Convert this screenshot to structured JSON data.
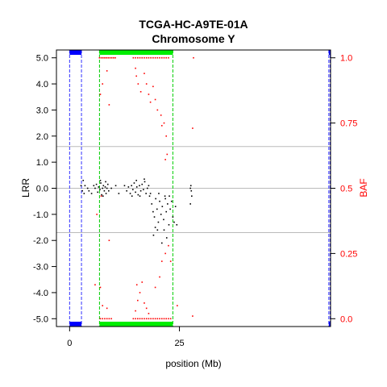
{
  "chart_data": {
    "type": "scatter",
    "title": "TCGA-HC-A9TE-01A",
    "subtitle": "Chromosome Y",
    "xlabel": "position (Mb)",
    "ylabel": "LRR",
    "y2label": "BAF",
    "xlim": [
      -3,
      59.4
    ],
    "ylim": [
      -5.3,
      5.3
    ],
    "y2lim": [
      -0.03,
      1.03
    ],
    "x_ticks": [
      0,
      25
    ],
    "x_tick_labels": [
      "0",
      "25"
    ],
    "y_ticks": [
      5,
      4,
      3,
      2,
      1,
      0,
      -1,
      -2,
      -3,
      -4,
      -5
    ],
    "y_tick_labels": [
      "5.0",
      "4.0",
      "3.0",
      "2.0",
      "1.0",
      "0.0",
      "-1.0",
      "-2.0",
      "-3.0",
      "-4.0",
      "-5.0"
    ],
    "y2_ticks": [
      1,
      0.75,
      0.5,
      0.25,
      0
    ],
    "y2_tick_labels": [
      "1.0",
      "0.75",
      "0.5",
      "0.25",
      "0.0"
    ],
    "hlines": [
      {
        "y": 1.6,
        "color": "#bbbbbb"
      },
      {
        "y": 0,
        "color": "#bbbbbb"
      },
      {
        "y": -1.7,
        "color": "#bbbbbb"
      }
    ],
    "vlines": [
      {
        "x": 0.0,
        "color": "#3333ff"
      },
      {
        "x": 2.7,
        "color": "#3333ff"
      },
      {
        "x": 6.8,
        "color": "#00cc00"
      },
      {
        "x": 23.5,
        "color": "#00cc00"
      },
      {
        "x": 59.0,
        "color": "#3333ff"
      },
      {
        "x": 59.3,
        "color": "#3333ff"
      }
    ],
    "segments": [
      {
        "x0": 0.0,
        "x1": 2.7,
        "color": "#0000ff"
      },
      {
        "x0": 6.8,
        "x1": 23.5,
        "color": "#00ee00"
      },
      {
        "x0": 59.0,
        "x1": 59.3,
        "color": "#0000ff"
      }
    ],
    "colors": {
      "lrr": "#000000",
      "baf": "#ff0000",
      "grid": "#bbbbbb",
      "axis": "#000000"
    },
    "series": [
      {
        "name": "LRR",
        "axis": "left",
        "points": [
          [
            2.6,
            0.1
          ],
          [
            2.9,
            -0.1
          ],
          [
            3.1,
            0.3
          ],
          [
            3.3,
            -0.2
          ],
          [
            3.5,
            0.1
          ],
          [
            4.1,
            0.0
          ],
          [
            4.4,
            -0.1
          ],
          [
            5.0,
            -0.2
          ],
          [
            5.5,
            0.1
          ],
          [
            5.8,
            0.0
          ],
          [
            6.1,
            0.15
          ],
          [
            6.4,
            -0.15
          ],
          [
            6.6,
            0.05
          ],
          [
            6.9,
            -0.05
          ],
          [
            7.1,
            0.2
          ],
          [
            7.3,
            -0.25
          ],
          [
            7.5,
            0.0
          ],
          [
            7.7,
            0.1
          ],
          [
            7.9,
            -0.1
          ],
          [
            8.1,
            0.05
          ],
          [
            8.3,
            -0.2
          ],
          [
            8.5,
            0.0
          ],
          [
            8.7,
            0.15
          ],
          [
            8.9,
            -0.1
          ],
          [
            7.0,
            0.3
          ],
          [
            7.6,
            -0.3
          ],
          [
            8.2,
            0.25
          ],
          [
            12.5,
            0.1
          ],
          [
            13.0,
            -0.1
          ],
          [
            13.4,
            0.05
          ],
          [
            13.8,
            -0.2
          ],
          [
            14.1,
            0.1
          ],
          [
            14.4,
            -0.05
          ],
          [
            14.7,
            0.2
          ],
          [
            15.0,
            -0.15
          ],
          [
            15.3,
            0.05
          ],
          [
            15.6,
            -0.25
          ],
          [
            15.9,
            0.1
          ],
          [
            16.2,
            -0.1
          ],
          [
            16.5,
            0.15
          ],
          [
            16.8,
            -0.05
          ],
          [
            17.1,
            0.25
          ],
          [
            17.4,
            -0.2
          ],
          [
            17.7,
            0.0
          ],
          [
            18.0,
            0.1
          ],
          [
            18.2,
            -0.3
          ],
          [
            15.2,
            0.3
          ],
          [
            16.0,
            -0.3
          ],
          [
            14.2,
            -0.3
          ],
          [
            17.0,
            0.35
          ],
          [
            18.4,
            -0.2
          ],
          [
            18.7,
            -0.6
          ],
          [
            19.0,
            -0.9
          ],
          [
            19.3,
            -1.1
          ],
          [
            19.6,
            -0.4
          ],
          [
            19.9,
            -0.8
          ],
          [
            20.2,
            -1.3
          ],
          [
            20.5,
            -0.5
          ],
          [
            20.8,
            -1.0
          ],
          [
            21.1,
            -0.7
          ],
          [
            21.4,
            -1.2
          ],
          [
            21.7,
            -0.3
          ],
          [
            22.0,
            -0.9
          ],
          [
            22.3,
            -0.6
          ],
          [
            22.6,
            -1.4
          ],
          [
            22.9,
            -0.8
          ],
          [
            23.2,
            -0.5
          ],
          [
            23.5,
            -1.1
          ],
          [
            19.1,
            -1.8
          ],
          [
            19.5,
            -1.5
          ],
          [
            20.0,
            -1.6
          ],
          [
            21.0,
            -2.1
          ],
          [
            21.5,
            -1.6
          ],
          [
            22.1,
            -1.9
          ],
          [
            23.8,
            -1.3
          ],
          [
            24.1,
            -0.7
          ],
          [
            24.4,
            -1.4
          ],
          [
            20.3,
            -0.2
          ],
          [
            21.8,
            -0.4
          ],
          [
            22.7,
            -0.3
          ],
          [
            27.5,
            0.0
          ],
          [
            27.6,
            0.1
          ],
          [
            27.7,
            -0.1
          ],
          [
            27.8,
            -0.3
          ],
          [
            27.5,
            -0.6
          ],
          [
            10.5,
            0.1
          ],
          [
            11.2,
            -0.2
          ],
          [
            9.5,
            0.0
          ]
        ]
      },
      {
        "name": "BAF",
        "axis": "right",
        "points": [
          [
            6.8,
            1.0
          ],
          [
            7.2,
            1.0
          ],
          [
            7.6,
            1.0
          ],
          [
            8.0,
            1.0
          ],
          [
            8.4,
            1.0
          ],
          [
            8.8,
            1.0
          ],
          [
            9.2,
            1.0
          ],
          [
            9.6,
            1.0
          ],
          [
            10.0,
            1.0
          ],
          [
            10.4,
            1.0
          ],
          [
            14.5,
            1.0
          ],
          [
            15.0,
            1.0
          ],
          [
            15.5,
            1.0
          ],
          [
            16.0,
            1.0
          ],
          [
            16.5,
            1.0
          ],
          [
            17.0,
            1.0
          ],
          [
            17.5,
            1.0
          ],
          [
            18.0,
            1.0
          ],
          [
            18.5,
            1.0
          ],
          [
            19.0,
            1.0
          ],
          [
            19.5,
            1.0
          ],
          [
            20.0,
            1.0
          ],
          [
            20.5,
            1.0
          ],
          [
            21.0,
            1.0
          ],
          [
            21.5,
            1.0
          ],
          [
            22.0,
            1.0
          ],
          [
            22.5,
            1.0
          ],
          [
            28.2,
            1.0
          ],
          [
            7.0,
            0.0
          ],
          [
            7.5,
            0.0
          ],
          [
            8.0,
            0.0
          ],
          [
            8.5,
            0.0
          ],
          [
            9.0,
            0.0
          ],
          [
            9.5,
            0.0
          ],
          [
            14.5,
            0.0
          ],
          [
            15.0,
            0.0
          ],
          [
            15.5,
            0.0
          ],
          [
            16.0,
            0.0
          ],
          [
            16.5,
            0.0
          ],
          [
            17.0,
            0.0
          ],
          [
            17.5,
            0.0
          ],
          [
            18.0,
            0.0
          ],
          [
            18.5,
            0.0
          ],
          [
            19.0,
            0.0
          ],
          [
            19.5,
            0.0
          ],
          [
            20.0,
            0.0
          ],
          [
            20.5,
            0.0
          ],
          [
            21.0,
            0.0
          ],
          [
            21.5,
            0.0
          ],
          [
            22.0,
            0.0
          ],
          [
            22.5,
            0.0
          ],
          [
            23.0,
            0.0
          ],
          [
            7.0,
            0.86
          ],
          [
            7.5,
            0.9
          ],
          [
            8.5,
            0.95
          ],
          [
            9.0,
            0.82
          ],
          [
            15.0,
            0.96
          ],
          [
            15.2,
            0.93
          ],
          [
            15.6,
            0.9
          ],
          [
            16.2,
            0.87
          ],
          [
            17.0,
            0.94
          ],
          [
            17.5,
            0.9
          ],
          [
            18.0,
            0.86
          ],
          [
            18.4,
            0.83
          ],
          [
            19.0,
            0.89
          ],
          [
            19.5,
            0.84
          ],
          [
            20.0,
            0.8
          ],
          [
            21.5,
            0.75
          ],
          [
            22.0,
            0.7
          ],
          [
            20.8,
            0.78
          ],
          [
            21.0,
            0.74
          ],
          [
            22.2,
            0.63
          ],
          [
            21.8,
            0.61
          ],
          [
            28.0,
            0.73
          ],
          [
            7.0,
            0.12
          ],
          [
            7.5,
            0.05
          ],
          [
            8.5,
            0.04
          ],
          [
            9.0,
            0.3
          ],
          [
            15.0,
            0.03
          ],
          [
            15.5,
            0.07
          ],
          [
            16.0,
            0.1
          ],
          [
            16.5,
            0.14
          ],
          [
            17.0,
            0.06
          ],
          [
            17.5,
            0.04
          ],
          [
            18.0,
            0.02
          ],
          [
            19.5,
            0.12
          ],
          [
            20.5,
            0.16
          ],
          [
            21.0,
            0.22
          ],
          [
            21.8,
            0.25
          ],
          [
            23.0,
            0.22
          ],
          [
            22.5,
            0.28
          ],
          [
            28.0,
            0.01
          ],
          [
            24.5,
            0.05
          ],
          [
            15.3,
            0.13
          ],
          [
            5.8,
            0.13
          ],
          [
            6.2,
            0.4
          ],
          [
            7.2,
            0.47
          ]
        ]
      }
    ]
  }
}
